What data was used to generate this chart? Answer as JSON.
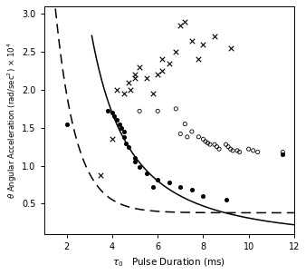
{
  "xlabel": "$\\tau_0$   Pulse Duration (ms)",
  "ylabel": "$\\theta$ Angular Acceleration (rad/sec$^2$) $\\times$ 10$^4$",
  "xlim": [
    1,
    12
  ],
  "ylim": [
    0.1,
    3.1
  ],
  "xticks": [
    2,
    4,
    6,
    8,
    10,
    12
  ],
  "yticks": [
    0.5,
    1.0,
    1.5,
    2.0,
    2.5,
    3.0
  ],
  "concussion_o": [
    [
      5.2,
      1.72
    ],
    [
      6.0,
      1.72
    ],
    [
      6.8,
      1.75
    ],
    [
      7.2,
      1.55
    ],
    [
      7.5,
      1.45
    ],
    [
      7.0,
      1.42
    ],
    [
      7.3,
      1.38
    ],
    [
      7.8,
      1.38
    ],
    [
      8.0,
      1.35
    ],
    [
      8.1,
      1.32
    ],
    [
      8.2,
      1.3
    ],
    [
      8.3,
      1.28
    ],
    [
      8.5,
      1.28
    ],
    [
      8.6,
      1.25
    ],
    [
      8.7,
      1.22
    ],
    [
      9.0,
      1.28
    ],
    [
      9.1,
      1.25
    ],
    [
      9.2,
      1.22
    ],
    [
      9.3,
      1.2
    ],
    [
      9.5,
      1.2
    ],
    [
      9.6,
      1.18
    ],
    [
      10.0,
      1.22
    ],
    [
      10.2,
      1.2
    ],
    [
      10.4,
      1.18
    ],
    [
      11.5,
      1.18
    ]
  ],
  "diffuse_dot": [
    [
      2.0,
      1.55
    ],
    [
      3.8,
      1.72
    ],
    [
      4.0,
      1.7
    ],
    [
      4.1,
      1.65
    ],
    [
      4.2,
      1.6
    ],
    [
      4.3,
      1.55
    ],
    [
      4.4,
      1.5
    ],
    [
      4.5,
      1.45
    ],
    [
      4.5,
      1.38
    ],
    [
      4.6,
      1.3
    ],
    [
      4.7,
      1.25
    ],
    [
      5.0,
      1.1
    ],
    [
      5.0,
      1.05
    ],
    [
      5.2,
      0.98
    ],
    [
      5.5,
      0.9
    ],
    [
      6.0,
      0.82
    ],
    [
      6.5,
      0.78
    ],
    [
      5.8,
      0.72
    ],
    [
      7.0,
      0.72
    ],
    [
      7.5,
      0.68
    ],
    [
      8.0,
      0.6
    ],
    [
      9.0,
      0.55
    ],
    [
      11.5,
      1.15
    ]
  ],
  "cross_x": [
    [
      3.5,
      0.88
    ],
    [
      4.0,
      1.35
    ],
    [
      4.2,
      2.0
    ],
    [
      4.5,
      1.95
    ],
    [
      4.7,
      2.1
    ],
    [
      4.8,
      2.0
    ],
    [
      5.0,
      2.2
    ],
    [
      5.2,
      2.3
    ],
    [
      5.0,
      2.15
    ],
    [
      5.5,
      2.15
    ],
    [
      5.8,
      1.95
    ],
    [
      6.0,
      2.2
    ],
    [
      6.2,
      2.25
    ],
    [
      6.2,
      2.4
    ],
    [
      6.5,
      2.35
    ],
    [
      6.8,
      2.5
    ],
    [
      7.0,
      2.85
    ],
    [
      7.2,
      2.9
    ],
    [
      7.5,
      2.65
    ],
    [
      7.8,
      2.4
    ],
    [
      8.0,
      2.6
    ],
    [
      8.5,
      2.7
    ],
    [
      9.2,
      2.55
    ]
  ],
  "solid_a": 22.0,
  "solid_b": 1.85,
  "dashed_a": 14.0,
  "dashed_k": 1.1,
  "dashed_c": 0.38,
  "bg_color": "#ffffff"
}
